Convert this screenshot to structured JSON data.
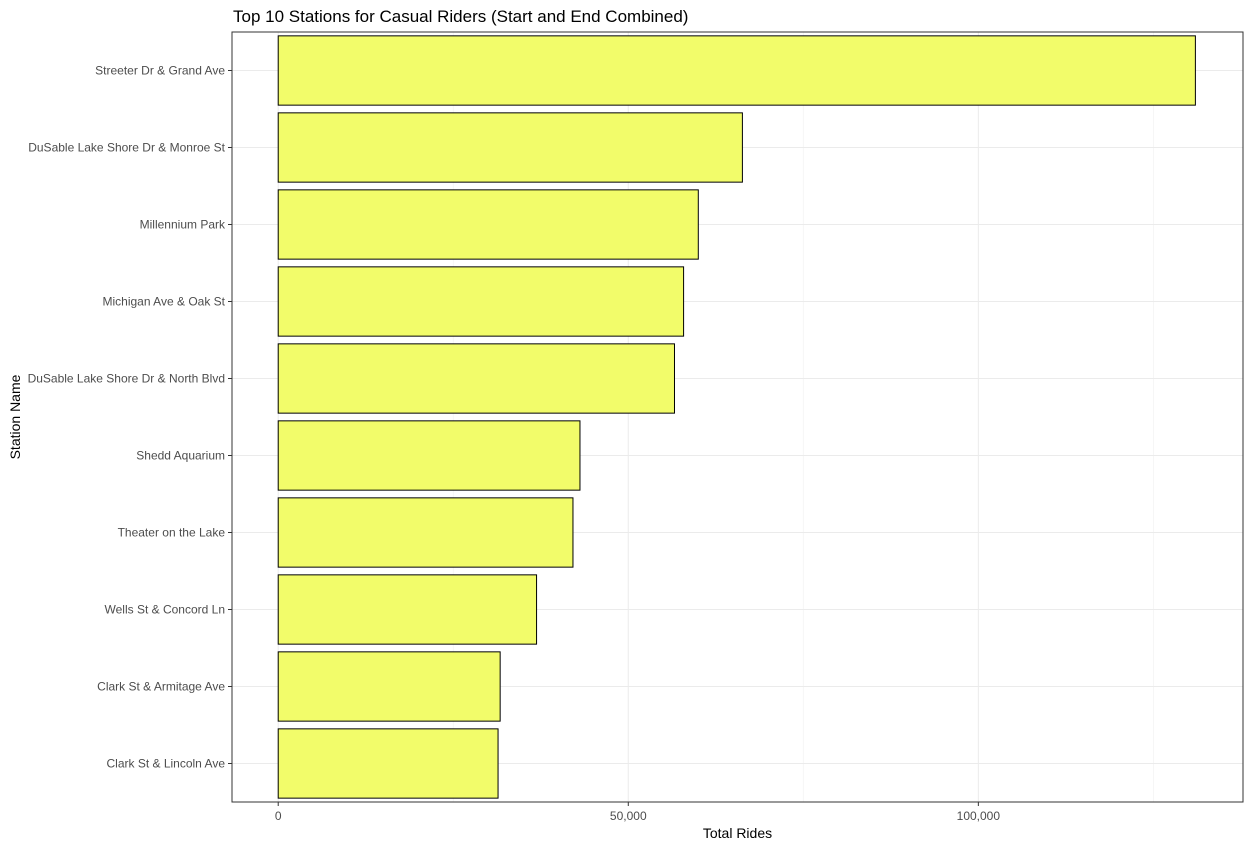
{
  "chart_data": {
    "type": "bar",
    "orientation": "horizontal",
    "title": "Top 10 Stations for Casual Riders (Start and End Combined)",
    "xlabel": "Total Rides",
    "ylabel": "Station Name",
    "xlim": [
      -6600,
      137800
    ],
    "x_ticks": [
      0,
      50000,
      100000
    ],
    "x_tick_labels": [
      "0",
      "50,000",
      "100,000"
    ],
    "grid": true,
    "legend": "none",
    "bar_fill": "#f2fc6a",
    "bar_outline": "#000000",
    "categories": [
      "Streeter Dr & Grand Ave",
      "DuSable Lake Shore Dr & Monroe St",
      "Millennium Park",
      "Michigan Ave & Oak St",
      "DuSable Lake Shore Dr & North Blvd",
      "Shedd Aquarium",
      "Theater on the Lake",
      "Wells St & Concord Ln",
      "Clark St & Armitage Ave",
      "Clark St & Lincoln Ave"
    ],
    "values": [
      131000,
      66300,
      60000,
      57900,
      56600,
      43100,
      42100,
      36900,
      31700,
      31400
    ]
  }
}
